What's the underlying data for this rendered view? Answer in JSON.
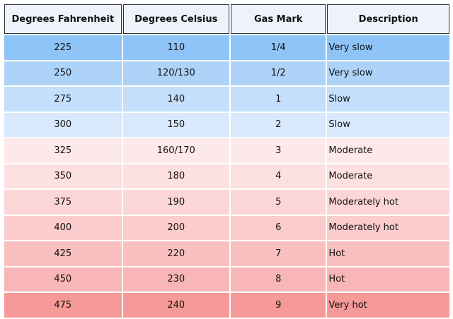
{
  "chart_data": {
    "type": "table",
    "columns": [
      "Degrees Fahrenheit",
      "Degrees Celsius",
      "Gas Mark",
      "Description"
    ],
    "rows": [
      {
        "fahrenheit": "225",
        "celsius": "110",
        "gas_mark": "1/4",
        "description": "Very slow",
        "color": "#8ec4f8"
      },
      {
        "fahrenheit": "250",
        "celsius": "120/130",
        "gas_mark": "1/2",
        "description": "Very slow",
        "color": "#aed3f9"
      },
      {
        "fahrenheit": "275",
        "celsius": "140",
        "gas_mark": "1",
        "description": "Slow",
        "color": "#c4dffb"
      },
      {
        "fahrenheit": "300",
        "celsius": "150",
        "gas_mark": "2",
        "description": "Slow",
        "color": "#d8e9fd"
      },
      {
        "fahrenheit": "325",
        "celsius": "160/170",
        "gas_mark": "3",
        "description": "Moderate",
        "color": "#fde9e9"
      },
      {
        "fahrenheit": "350",
        "celsius": "180",
        "gas_mark": "4",
        "description": "Moderate",
        "color": "#fde0e0"
      },
      {
        "fahrenheit": "375",
        "celsius": "190",
        "gas_mark": "5",
        "description": "Moderately hot",
        "color": "#fcd6d6"
      },
      {
        "fahrenheit": "400",
        "celsius": "200",
        "gas_mark": "6",
        "description": "Moderately hot",
        "color": "#fbcccc"
      },
      {
        "fahrenheit": "425",
        "celsius": "220",
        "gas_mark": "7",
        "description": "Hot",
        "color": "#fac0c0"
      },
      {
        "fahrenheit": "450",
        "celsius": "230",
        "gas_mark": "8",
        "description": "Hot",
        "color": "#f9b6b6"
      },
      {
        "fahrenheit": "475",
        "celsius": "240",
        "gas_mark": "9",
        "description": "Very hot",
        "color": "#f69999"
      }
    ]
  }
}
